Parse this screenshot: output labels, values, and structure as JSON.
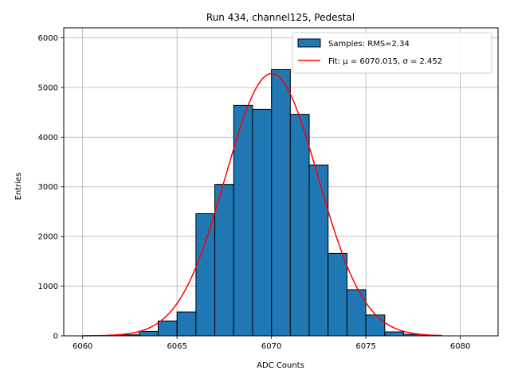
{
  "chart_data": {
    "type": "bar",
    "title": "Run 434, channel125, Pedestal",
    "xlabel": "ADC Counts",
    "ylabel": "Entries",
    "xlim": [
      6059,
      6082
    ],
    "ylim": [
      0,
      6200
    ],
    "grid": true,
    "x_ticks": [
      6060,
      6065,
      6070,
      6075,
      6080
    ],
    "y_ticks": [
      0,
      1000,
      2000,
      3000,
      4000,
      5000,
      6000
    ],
    "bar_color": "#1f77b4",
    "bar_edge_color": "#000000",
    "fit_color": "#ff0000",
    "bins": [
      {
        "x0": 6062,
        "x1": 6063,
        "count": 20
      },
      {
        "x0": 6063,
        "x1": 6064,
        "count": 90
      },
      {
        "x0": 6064,
        "x1": 6065,
        "count": 300
      },
      {
        "x0": 6065,
        "x1": 6066,
        "count": 480
      },
      {
        "x0": 6066,
        "x1": 6067,
        "count": 2460
      },
      {
        "x0": 6067,
        "x1": 6068,
        "count": 3050
      },
      {
        "x0": 6068,
        "x1": 6069,
        "count": 4640
      },
      {
        "x0": 6069,
        "x1": 6070,
        "count": 4560
      },
      {
        "x0": 6070,
        "x1": 6071,
        "count": 5360
      },
      {
        "x0": 6071,
        "x1": 6072,
        "count": 4460
      },
      {
        "x0": 6072,
        "x1": 6073,
        "count": 3440
      },
      {
        "x0": 6073,
        "x1": 6074,
        "count": 1660
      },
      {
        "x0": 6074,
        "x1": 6075,
        "count": 930
      },
      {
        "x0": 6075,
        "x1": 6076,
        "count": 420
      },
      {
        "x0": 6076,
        "x1": 6077,
        "count": 80
      },
      {
        "x0": 6077,
        "x1": 6078,
        "count": 30
      },
      {
        "x0": 6078,
        "x1": 6079,
        "count": 10
      }
    ],
    "fit": {
      "mu": 6070.015,
      "sigma": 2.452,
      "amplitude": 5280,
      "x_range": [
        6060,
        6079
      ]
    },
    "legend": {
      "position": "top-right",
      "entries": [
        {
          "kind": "patch",
          "label": "Samples: RMS=2.34"
        },
        {
          "kind": "line",
          "label": "Fit: μ = 6070.015, σ = 2.452"
        }
      ]
    }
  }
}
